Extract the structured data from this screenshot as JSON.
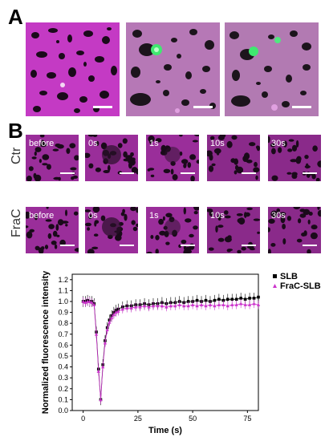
{
  "panels": {
    "a_label": "A",
    "b_label": "B"
  },
  "panel_b": {
    "rows": [
      {
        "label": "Ctr",
        "times": [
          "before",
          "0s",
          "1s",
          "10s",
          "30s"
        ]
      },
      {
        "label": "FraC",
        "times": [
          "before",
          "0s",
          "1s",
          "10s",
          "30s"
        ]
      }
    ]
  },
  "colors": {
    "magenta": "#c020c0",
    "green": "#30e060",
    "series_slb": "#000000",
    "series_frac": "#cc33cc"
  },
  "chart_data": {
    "type": "scatter",
    "xlabel": "Time (s)",
    "ylabel": "Normalized fluorescence intensity",
    "xlim": [
      -5,
      80
    ],
    "ylim": [
      0.0,
      1.25
    ],
    "xticks": [
      0,
      25,
      50,
      75
    ],
    "yticks": [
      0.0,
      0.1,
      0.2,
      0.3,
      0.4,
      0.5,
      0.6,
      0.7,
      0.8,
      0.9,
      1.0,
      1.1,
      1.2
    ],
    "legend_position": "top-right, outside plot",
    "series": [
      {
        "name": "SLB",
        "marker": "square",
        "color": "#000000",
        "x": [
          0,
          1,
          2,
          3,
          4,
          5,
          6,
          7,
          8,
          9,
          10,
          11,
          12,
          13,
          14,
          15,
          16,
          18,
          20,
          22,
          24,
          26,
          28,
          30,
          32,
          34,
          36,
          38,
          40,
          42,
          44,
          46,
          48,
          50,
          52,
          54,
          56,
          58,
          60,
          62,
          64,
          66,
          68,
          70,
          72,
          74,
          76,
          78,
          80
        ],
        "y": [
          1.0,
          1.0,
          1.01,
          1.0,
          1.0,
          0.98,
          0.72,
          0.38,
          0.1,
          0.42,
          0.64,
          0.76,
          0.83,
          0.87,
          0.9,
          0.92,
          0.93,
          0.95,
          0.96,
          0.96,
          0.97,
          0.97,
          0.98,
          0.97,
          0.98,
          0.98,
          0.99,
          0.98,
          0.99,
          0.99,
          1.0,
          0.99,
          1.0,
          1.0,
          1.01,
          1.0,
          1.01,
          1.0,
          1.01,
          1.02,
          1.01,
          1.02,
          1.02,
          1.02,
          1.03,
          1.02,
          1.03,
          1.03,
          1.04
        ],
        "error": 0.05
      },
      {
        "name": "FraC-SLB",
        "marker": "triangle",
        "color": "#cc33cc",
        "x": [
          0,
          1,
          2,
          3,
          4,
          5,
          6,
          7,
          8,
          9,
          10,
          11,
          12,
          13,
          14,
          15,
          16,
          18,
          20,
          22,
          24,
          26,
          28,
          30,
          32,
          34,
          36,
          38,
          40,
          42,
          44,
          46,
          48,
          50,
          52,
          54,
          56,
          58,
          60,
          62,
          64,
          66,
          68,
          70,
          72,
          74,
          76,
          78,
          80
        ],
        "y": [
          1.0,
          0.99,
          1.0,
          1.0,
          0.99,
          0.97,
          0.7,
          0.36,
          0.1,
          0.4,
          0.62,
          0.74,
          0.81,
          0.85,
          0.88,
          0.9,
          0.91,
          0.93,
          0.94,
          0.94,
          0.95,
          0.95,
          0.96,
          0.95,
          0.96,
          0.96,
          0.96,
          0.95,
          0.96,
          0.96,
          0.97,
          0.96,
          0.96,
          0.97,
          0.96,
          0.97,
          0.96,
          0.97,
          0.96,
          0.97,
          0.97,
          0.96,
          0.97,
          0.97,
          0.98,
          0.97,
          0.97,
          0.98,
          0.97
        ],
        "error": 0.04
      }
    ]
  }
}
